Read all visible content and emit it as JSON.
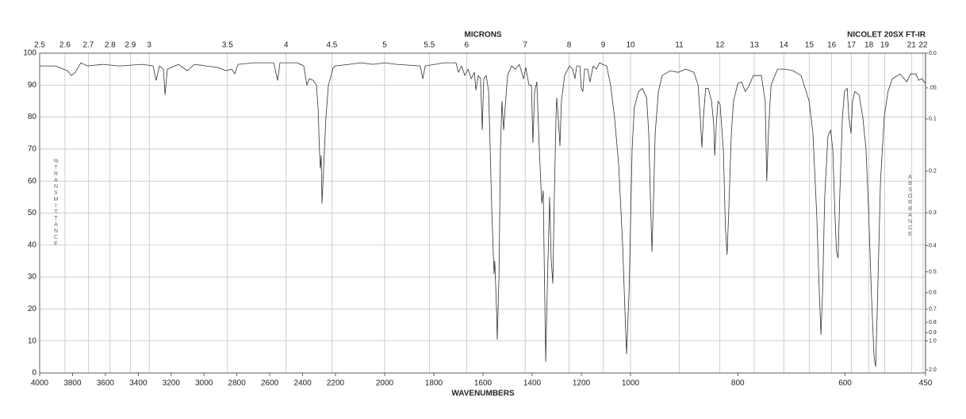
{
  "chart_data": {
    "type": "line",
    "title": "NICOLET 20SX FT-IR",
    "x_label": "WAVENUMBERS",
    "x2_label": "MICRONS",
    "y_label": "%TRANSMITTANCE",
    "y2_label": "ABSORBANCE",
    "xlim": [
      4000,
      450
    ],
    "xticks": [
      4000,
      3800,
      3600,
      3400,
      3200,
      3000,
      2800,
      2600,
      2400,
      2200,
      2000,
      1800,
      1600,
      1400,
      1200,
      1000,
      800,
      600,
      450
    ],
    "x2ticks": [
      2.5,
      2.6,
      2.7,
      2.8,
      2.9,
      3,
      3.5,
      4,
      4.5,
      5,
      5.5,
      6,
      7,
      8,
      9,
      10,
      11,
      12,
      13,
      14,
      15,
      16,
      17,
      18,
      19,
      21,
      22
    ],
    "ylim": [
      0,
      100
    ],
    "yticks": [
      0,
      10,
      20,
      30,
      40,
      50,
      60,
      70,
      80,
      90,
      100
    ],
    "y2lim": [
      2,
      0
    ],
    "y2ticks": [
      {
        "value": 0,
        "label": "0.0"
      },
      {
        "value": 0.05,
        "label": ".05"
      },
      0.1,
      0.2,
      0.3,
      0.4,
      0.5,
      0.6,
      0.7,
      0.8,
      0.9,
      {
        "value": 1,
        "label": "1.0"
      },
      {
        "value": 2,
        "label": "2.0"
      }
    ],
    "grid": true,
    "x": [
      4000,
      3903,
      3831,
      3807,
      3783,
      3749,
      3710,
      3614,
      3517,
      3373,
      3310,
      3291,
      3271,
      3247,
      3237,
      3223,
      3155,
      3102,
      3059,
      2987,
      2914,
      2866,
      2832,
      2813,
      2793,
      2697,
      2576,
      2552,
      2538,
      2432,
      2393,
      2374,
      2359,
      2335,
      2316,
      2306,
      2297,
      2292,
      2287,
      2282,
      2272,
      2267,
      2258,
      2243,
      2214,
      2200,
      2145,
      2097,
      2048,
      2000,
      1952,
      1855,
      1845,
      1835,
      1758,
      1710,
      1700,
      1687,
      1674,
      1661,
      1648,
      1635,
      1629,
      1619,
      1610,
      1603,
      1597,
      1587,
      1577,
      1564,
      1555,
      1552,
      1545,
      1542,
      1535,
      1529,
      1523,
      1516,
      1510,
      1500,
      1484,
      1468,
      1452,
      1435,
      1426,
      1413,
      1403,
      1397,
      1390,
      1381,
      1371,
      1364,
      1361,
      1355,
      1352,
      1345,
      1339,
      1329,
      1323,
      1316,
      1310,
      1303,
      1300,
      1294,
      1287,
      1281,
      1268,
      1248,
      1235,
      1226,
      1219,
      1206,
      1200,
      1194,
      1187,
      1174,
      1165,
      1152,
      1139,
      1126,
      1113,
      1097,
      1081,
      1065,
      1048,
      1032,
      1023,
      1016,
      1006,
      997,
      993,
      985,
      978,
      970,
      966,
      963,
      960,
      957,
      954,
      948,
      941,
      926,
      911,
      897,
      882,
      874,
      870,
      867,
      864,
      860,
      855,
      849,
      845,
      843,
      840,
      837,
      833,
      827,
      823,
      820,
      817,
      812,
      808,
      800,
      793,
      786,
      780,
      771,
      756,
      749,
      746,
      743,
      738,
      726,
      712,
      697,
      682,
      667,
      660,
      653,
      648,
      645,
      642,
      638,
      632,
      627,
      623,
      619,
      616,
      613,
      610,
      605,
      601,
      596,
      593,
      589,
      586,
      582,
      574,
      567,
      561,
      556,
      551,
      546,
      543,
      540,
      534,
      527,
      520,
      512,
      497,
      490,
      485,
      478,
      468,
      463,
      457,
      450
    ],
    "series": [
      {
        "color": "#333333",
        "values": [
          96,
          96,
          94.5,
          93,
          94,
          97,
          96,
          96.5,
          96,
          96.5,
          96,
          91.5,
          96,
          95,
          87,
          95,
          96.5,
          94.5,
          96.5,
          96,
          95.5,
          94.5,
          95,
          93.5,
          96.5,
          97,
          97,
          91.5,
          97,
          97,
          96,
          90,
          92,
          91.5,
          90,
          83,
          69,
          64,
          68,
          53,
          64,
          70,
          80,
          90,
          95.5,
          96,
          96.5,
          97,
          96.5,
          97,
          96.5,
          96,
          92,
          96,
          97,
          97,
          94,
          96,
          93,
          95,
          92,
          94,
          88.5,
          93,
          92,
          76,
          92,
          93,
          88,
          50,
          31,
          35,
          20,
          10.5,
          30,
          70,
          85,
          76,
          83,
          93,
          96,
          95,
          96.5,
          92,
          95.5,
          90,
          90,
          72,
          88,
          91,
          70,
          58,
          53,
          57,
          40,
          3.5,
          25,
          55,
          36,
          28,
          55,
          80,
          86,
          80,
          71,
          85,
          93,
          96,
          95,
          92,
          96,
          96,
          89,
          88,
          95,
          95,
          91,
          96,
          95,
          97,
          96.5,
          96,
          90,
          80,
          65,
          40,
          20,
          6,
          25,
          70,
          83,
          88,
          89,
          86,
          75,
          55,
          38,
          55,
          75,
          88,
          93,
          94.5,
          94,
          95,
          94,
          90,
          80,
          70.5,
          80,
          89,
          89,
          85,
          78,
          68,
          78,
          85,
          84,
          70,
          45,
          37,
          50,
          75,
          85,
          90.5,
          91,
          88,
          89.5,
          93,
          93,
          85,
          60,
          75,
          90,
          95,
          95,
          94.5,
          93,
          85,
          75,
          50,
          25,
          12,
          25,
          55,
          74,
          76,
          70,
          50,
          38,
          36,
          55,
          80,
          88,
          89,
          80,
          75,
          85,
          88,
          87,
          80,
          70,
          50,
          25,
          5,
          2,
          20,
          60,
          80,
          88,
          92,
          93.5,
          92,
          91,
          93.5,
          93.5,
          91.5,
          92,
          90.5
        ]
      }
    ]
  }
}
